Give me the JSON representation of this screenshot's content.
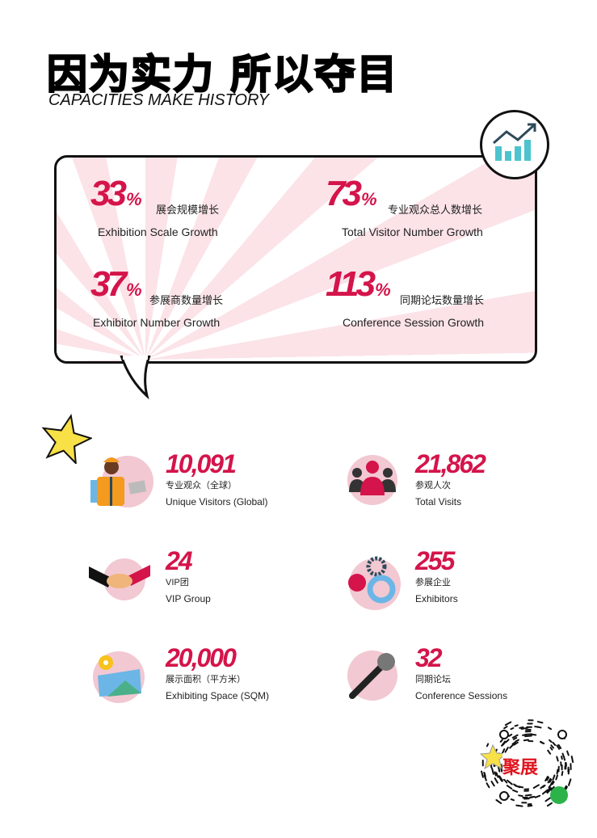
{
  "header": {
    "title": "因为实力 所以夺目",
    "subtitle": "CAPACITIES MAKE HISTORY"
  },
  "growth": [
    {
      "value": "33",
      "unit": "%",
      "cn": "展会规模增长",
      "en": "Exhibition Scale Growth"
    },
    {
      "value": "73",
      "unit": "%",
      "cn": "专业观众总人数增长",
      "en": "Total Visitor Number Growth"
    },
    {
      "value": "37",
      "unit": "%",
      "cn": "参展商数量增长",
      "en": "Exhibitor Number Growth"
    },
    {
      "value": "113",
      "unit": "%",
      "cn": "同期论坛数量增长",
      "en": "Conference Session Growth"
    }
  ],
  "stats": [
    {
      "value": "10,091",
      "cn": "专业观众（全球）",
      "en": "Unique Visitors (Global)",
      "icon": "worker-icon"
    },
    {
      "value": "21,862",
      "cn": "参观人次",
      "en": "Total Visits",
      "icon": "people-icon"
    },
    {
      "value": "24",
      "cn": "VIP团",
      "en": "VIP Group",
      "icon": "handshake-icon"
    },
    {
      "value": "255",
      "cn": "参展企业",
      "en": "Exhibitors",
      "icon": "gears-icon"
    },
    {
      "value": "20,000",
      "cn": "展示面积（平方米）",
      "en": "Exhibiting Space (SQM)",
      "icon": "map-pin-icon"
    },
    {
      "value": "32",
      "cn": "同期论坛",
      "en": "Conference Sessions",
      "icon": "microphone-icon"
    }
  ],
  "qr": {
    "logo_text": "聚展"
  },
  "colors": {
    "accent": "#d4144a",
    "teal": "#4cc3cf",
    "pink": "#f2c8d2"
  }
}
